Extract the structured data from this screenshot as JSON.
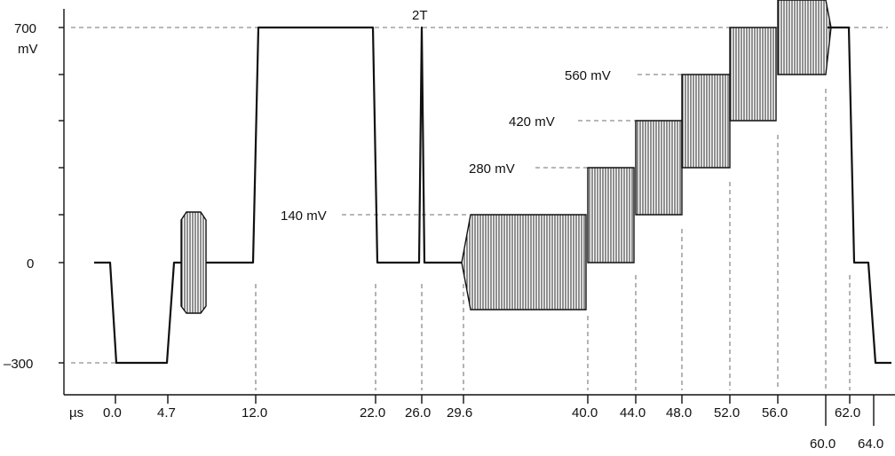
{
  "y_labels": {
    "v700": "700",
    "unit_mv": "mV",
    "v0": "0",
    "vneg300": "–300"
  },
  "x_labels": {
    "unit_us": "µs",
    "t0": "0.0",
    "t4_7": "4.7",
    "t12": "12.0",
    "t22": "22.0",
    "t26": "26.0",
    "t29_6": "29.6",
    "t40": "40.0",
    "t44": "44.0",
    "t48": "48.0",
    "t52": "52.0",
    "t56": "56.0",
    "t60": "60.0",
    "t62": "62.0",
    "t64": "64.0"
  },
  "annotations": {
    "two_t": "2T",
    "mv140": "140 mV",
    "mv280": "280 mV",
    "mv420": "420 mV",
    "mv560": "560 mV"
  }
}
